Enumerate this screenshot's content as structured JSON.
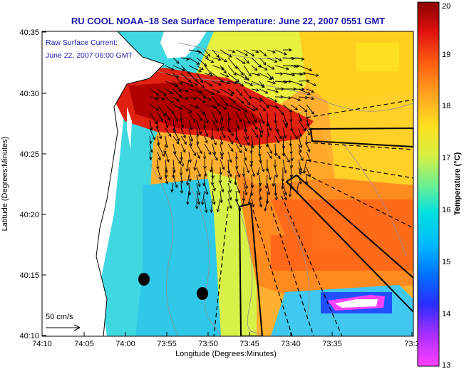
{
  "title": "RU COOL  NOAA–18  Sea Surface Temperature:  June 22, 2007 0551 GMT",
  "legend": {
    "line1": "Raw Surface Current:",
    "line2": "June 22, 2007 06:00 GMT"
  },
  "scale_label": "50 cm/s",
  "xlabel": "Longitude (Degrees:Minutes)",
  "ylabel": "Latitude (Degrees:Minutes)",
  "x_ticks": [
    "74:10",
    "74:05",
    "74:00",
    "73:55",
    "73:50",
    "73:45",
    "73:40",
    "73:35",
    "73:3"
  ],
  "y_ticks": [
    "40:35",
    "40:30",
    "40:25",
    "40:20",
    "40:15",
    "40:10"
  ],
  "colorbar": {
    "label": "Temperature (°C)",
    "min": 13,
    "max": 20,
    "ticks": [
      "20",
      "19",
      "18",
      "17",
      "16",
      "15",
      "14",
      "13"
    ],
    "colors": [
      "#ff40ff",
      "#7a2bff",
      "#0a2dff",
      "#0090ff",
      "#00d8f0",
      "#60f0a0",
      "#d8f040",
      "#ffe020",
      "#ffa020",
      "#ff5010",
      "#d81010",
      "#8a0000"
    ]
  },
  "chart_data": {
    "type": "heatmap",
    "title": "RU COOL  NOAA–18  Sea Surface Temperature:  June 22, 2007 0551 GMT",
    "xlabel": "Longitude (Degrees:Minutes)",
    "ylabel": "Latitude (Degrees:Minutes)",
    "xlim_minutes": [
      -74.1667,
      -73.5
    ],
    "ylim_minutes": [
      40.1667,
      40.5833
    ],
    "value_range_celsius": [
      13,
      20
    ]
  }
}
